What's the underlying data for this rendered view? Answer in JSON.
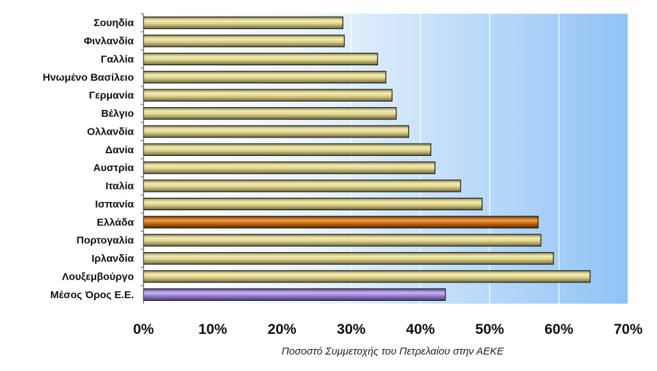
{
  "chart_data": {
    "type": "bar",
    "orientation": "horizontal",
    "categories": [
      "Σουηδία",
      "Φινλανδία",
      "Γαλλία",
      "Ηνωμένο Βασίλειο",
      "Γερμανία",
      "Βέλγιο",
      "Ολλανδία",
      "Δανία",
      "Αυστρία",
      "Ιταλία",
      "Ισπανία",
      "Ελλάδα",
      "Πορτογαλία",
      "Ιρλανδία",
      "Λουξεμβούργο",
      "Μέσος Όρος Ε.Ε."
    ],
    "values": [
      28.8,
      29.0,
      33.8,
      35.0,
      35.9,
      36.5,
      38.3,
      41.5,
      42.1,
      45.8,
      48.9,
      57.0,
      57.4,
      59.2,
      64.5,
      43.6
    ],
    "highlight_colors": {
      "Ελλάδα": "#c8690e",
      "Μέσος Όρος Ε.Ε.": "#9b7fd0"
    },
    "default_bar_color": "#d8cf86",
    "x_ticks": [
      "0%",
      "10%",
      "20%",
      "30%",
      "40%",
      "50%",
      "60%",
      "70%"
    ],
    "xlim": [
      0,
      70
    ],
    "xlabel": "Ποσοστό Συμμετοχής του Πετρελαίου στην ΑΕΚΕ",
    "ylabel": "",
    "title": "",
    "grid": true,
    "background_gradient": [
      "#ffffff",
      "#8fc3f5"
    ]
  }
}
